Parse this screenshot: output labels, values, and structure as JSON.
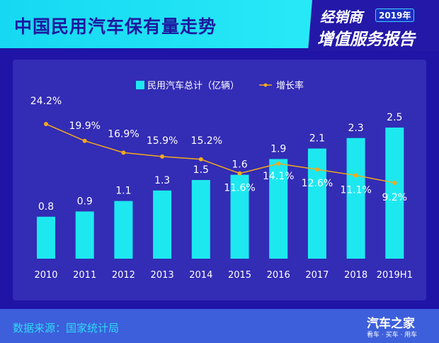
{
  "header": {
    "title": "中国民用汽车保有量走势",
    "badge_line1": "经销商",
    "badge_year": "2019年",
    "badge_line2": "增值服务报告"
  },
  "footer": {
    "source": "数据来源：国家统计局",
    "logo": "汽车之家",
    "logo_tagline": "看车 · 买车 · 用车"
  },
  "chart_data": {
    "type": "bar+line",
    "categories": [
      "2010",
      "2011",
      "2012",
      "2013",
      "2014",
      "2015",
      "2016",
      "2017",
      "2018",
      "2019H1"
    ],
    "series": [
      {
        "name": "民用汽车总计（亿辆）",
        "type": "bar",
        "color": "#1de8f0",
        "values": [
          0.8,
          0.9,
          1.1,
          1.3,
          1.5,
          1.6,
          1.9,
          2.1,
          2.3,
          2.5
        ],
        "labels": [
          "0.8",
          "0.9",
          "1.1",
          "1.3",
          "1.5",
          "1.6",
          "1.9",
          "2.1",
          "2.3",
          "2.5"
        ]
      },
      {
        "name": "增长率",
        "type": "line",
        "color": "#f2a91c",
        "values": [
          24.2,
          19.9,
          16.9,
          15.9,
          15.2,
          11.6,
          14.1,
          12.6,
          11.1,
          9.2
        ],
        "labels": [
          "24.2%",
          "19.9%",
          "16.9%",
          "15.9%",
          "15.2%",
          "11.6%",
          "14.1%",
          "12.6%",
          "11.1%",
          "9.2%"
        ]
      }
    ],
    "legend": "top-center",
    "grid": false
  }
}
